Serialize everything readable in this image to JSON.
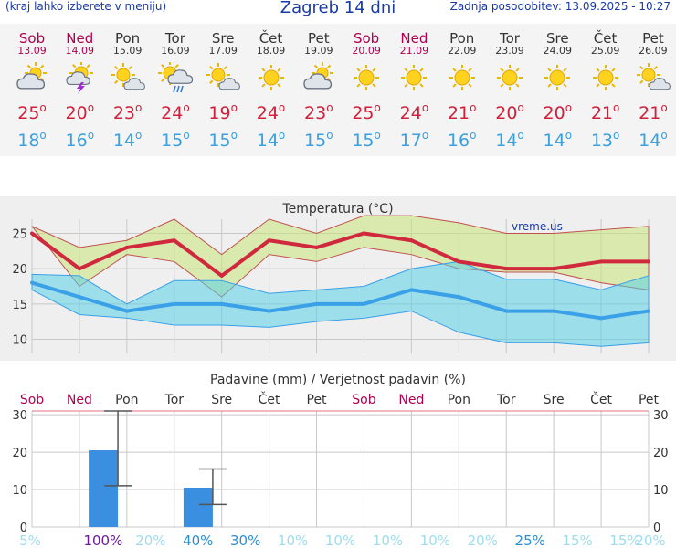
{
  "header": {
    "left_note": "(kraj lahko izberete v meniju)",
    "title": "Zagreb 14 dni",
    "updated": "Zadnja posodobitev: 13.09.2025 - 10:27"
  },
  "colors": {
    "weekend": "#b0004f",
    "max_temp": "#d0203a",
    "min_temp": "#3aa0e0",
    "bar": "#3a8fe0"
  },
  "days": [
    {
      "name": "Sob",
      "date": "13.09",
      "weekend": true,
      "icon": "partly-cloudy-icon",
      "tmax": "25",
      "tmin": "18"
    },
    {
      "name": "Ned",
      "date": "14.09",
      "weekend": true,
      "icon": "thunderstorm-icon",
      "tmax": "20",
      "tmin": "16"
    },
    {
      "name": "Pon",
      "date": "15.09",
      "weekend": false,
      "icon": "sun-cloud-icon",
      "tmax": "23",
      "tmin": "14"
    },
    {
      "name": "Tor",
      "date": "16.09",
      "weekend": false,
      "icon": "rain-icon",
      "tmax": "24",
      "tmin": "15"
    },
    {
      "name": "Sre",
      "date": "17.09",
      "weekend": false,
      "icon": "sun-cloud-icon",
      "tmax": "19",
      "tmin": "15"
    },
    {
      "name": "Čet",
      "date": "18.09",
      "weekend": false,
      "icon": "sun-icon",
      "tmax": "24",
      "tmin": "14"
    },
    {
      "name": "Pet",
      "date": "19.09",
      "weekend": false,
      "icon": "partly-cloudy-icon",
      "tmax": "23",
      "tmin": "15"
    },
    {
      "name": "Sob",
      "date": "20.09",
      "weekend": true,
      "icon": "sun-icon",
      "tmax": "25",
      "tmin": "15"
    },
    {
      "name": "Ned",
      "date": "21.09",
      "weekend": true,
      "icon": "sun-icon",
      "tmax": "24",
      "tmin": "17"
    },
    {
      "name": "Pon",
      "date": "22.09",
      "weekend": false,
      "icon": "sun-icon",
      "tmax": "21",
      "tmin": "16"
    },
    {
      "name": "Tor",
      "date": "23.09",
      "weekend": false,
      "icon": "sun-icon",
      "tmax": "20",
      "tmin": "14"
    },
    {
      "name": "Sre",
      "date": "24.09",
      "weekend": false,
      "icon": "sun-icon",
      "tmax": "20",
      "tmin": "14"
    },
    {
      "name": "Čet",
      "date": "25.09",
      "weekend": false,
      "icon": "sun-icon",
      "tmax": "21",
      "tmin": "13"
    },
    {
      "name": "Pet",
      "date": "26.09",
      "weekend": false,
      "icon": "sun-cloud-icon",
      "tmax": "21",
      "tmin": "14"
    }
  ],
  "chart_data": [
    {
      "type": "line",
      "title": "Temperatura (°C)",
      "watermark": "vreme.us",
      "ylim": [
        8,
        27
      ],
      "yticks": [
        10,
        15,
        20,
        25
      ],
      "grid": true,
      "series": [
        {
          "values": [
            25,
            20,
            23,
            24,
            19,
            24,
            23,
            25,
            24,
            21,
            20,
            20,
            21,
            21
          ],
          "color": "#d0283c"
        },
        {
          "values": [
            18,
            16,
            14,
            15,
            15,
            14,
            15,
            15,
            17,
            16,
            14,
            14,
            13,
            14
          ],
          "color": "#3aa0e8"
        }
      ],
      "max_band_low": [
        26,
        17.5,
        22,
        21,
        16,
        22,
        21,
        23,
        22,
        20,
        19.5,
        19.5,
        18,
        17
      ],
      "max_band_high": [
        26,
        23,
        24,
        27,
        22,
        27,
        25,
        27.5,
        27.5,
        26.5,
        25,
        25,
        25.5,
        26
      ],
      "min_band_low": [
        17,
        13.5,
        13,
        12,
        12,
        11.7,
        12.5,
        13,
        14,
        11,
        9.5,
        9.5,
        9,
        9.5
      ],
      "min_band_high": [
        19.2,
        19,
        15,
        18.3,
        18.3,
        16.5,
        17,
        17.5,
        20,
        21,
        18.5,
        18.5,
        17,
        19
      ]
    },
    {
      "type": "bar",
      "title": "Padavine (mm) / Verjetnost padavin (%)",
      "ylim": [
        0,
        31
      ],
      "yticks": [
        0,
        10,
        20,
        30
      ],
      "day_labels": [
        "Sob",
        "Ned",
        "Pon",
        "Tor",
        "Sre",
        "Čet",
        "Pet",
        "Sob",
        "Ned",
        "Pon",
        "Tor",
        "Sre",
        "Čet",
        "Pet"
      ],
      "day_weekend": [
        true,
        true,
        false,
        false,
        false,
        false,
        false,
        true,
        true,
        false,
        false,
        false,
        false,
        false
      ],
      "values": [
        0,
        20.5,
        0,
        10.5,
        0,
        0,
        0,
        0,
        0,
        0,
        0,
        0,
        0,
        0
      ],
      "err_low": [
        null,
        11,
        null,
        6,
        null,
        null,
        null,
        null,
        null,
        null,
        null,
        null,
        null,
        null
      ],
      "err_high": [
        null,
        31,
        null,
        15.5,
        null,
        null,
        null,
        null,
        null,
        null,
        null,
        null,
        null,
        null
      ],
      "probability": [
        "5%",
        "100%",
        "20%",
        "40%",
        "30%",
        "10%",
        "10%",
        "10%",
        "10%",
        "20%",
        "25%",
        "15%",
        "15%",
        "20%"
      ],
      "probability_colors": [
        "#9fdcef",
        "#6a1aa0",
        "#9fdcef",
        "#2a8fd8",
        "#2a8fd8",
        "#9fdcef",
        "#9fdcef",
        "#9fdcef",
        "#9fdcef",
        "#9fdcef",
        "#2a8fd8",
        "#9fdcef",
        "#9fdcef",
        "#9fdcef"
      ]
    }
  ]
}
